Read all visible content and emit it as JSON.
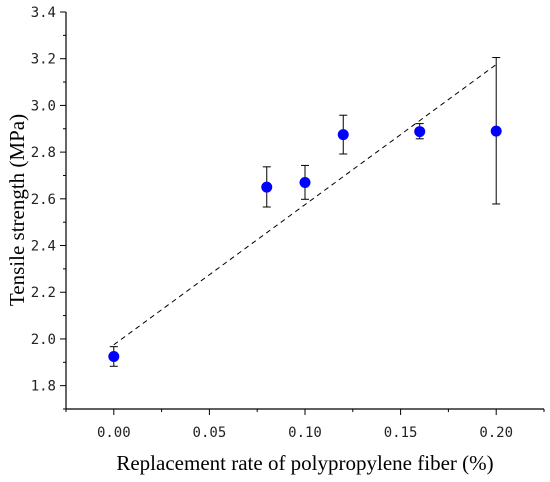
{
  "chart_data": {
    "type": "scatter",
    "xlabel": "Replacement rate of polypropylene fiber (%)",
    "ylabel": "Tensile strength (MPa)",
    "xlim": [
      -0.025,
      0.225
    ],
    "ylim": [
      1.7,
      3.4
    ],
    "x_ticks": [
      0.0,
      0.05,
      0.1,
      0.15,
      0.2
    ],
    "x_tick_labels": [
      "0.00",
      "0.05",
      "0.10",
      "0.15",
      "0.20"
    ],
    "y_ticks": [
      1.8,
      2.0,
      2.2,
      2.4,
      2.6,
      2.8,
      3.0,
      3.2,
      3.4
    ],
    "y_tick_labels": [
      "1.8",
      "2.0",
      "2.2",
      "2.4",
      "2.6",
      "2.8",
      "3.0",
      "3.2",
      "3.4"
    ],
    "grid": false,
    "series": [
      {
        "x": [
          0.0,
          0.08,
          0.1,
          0.12,
          0.16,
          0.2
        ],
        "y": [
          1.925,
          2.65,
          2.67,
          2.875,
          2.888,
          2.89
        ],
        "error_low": [
          1.883,
          2.565,
          2.598,
          2.792,
          2.857,
          2.578
        ],
        "error_high": [
          1.967,
          2.737,
          2.743,
          2.958,
          2.922,
          3.205
        ],
        "color": "#0000ff"
      }
    ],
    "trendline": {
      "style": "dashed",
      "x": [
        0.0,
        0.2
      ],
      "y": [
        1.975,
        3.175
      ]
    }
  }
}
